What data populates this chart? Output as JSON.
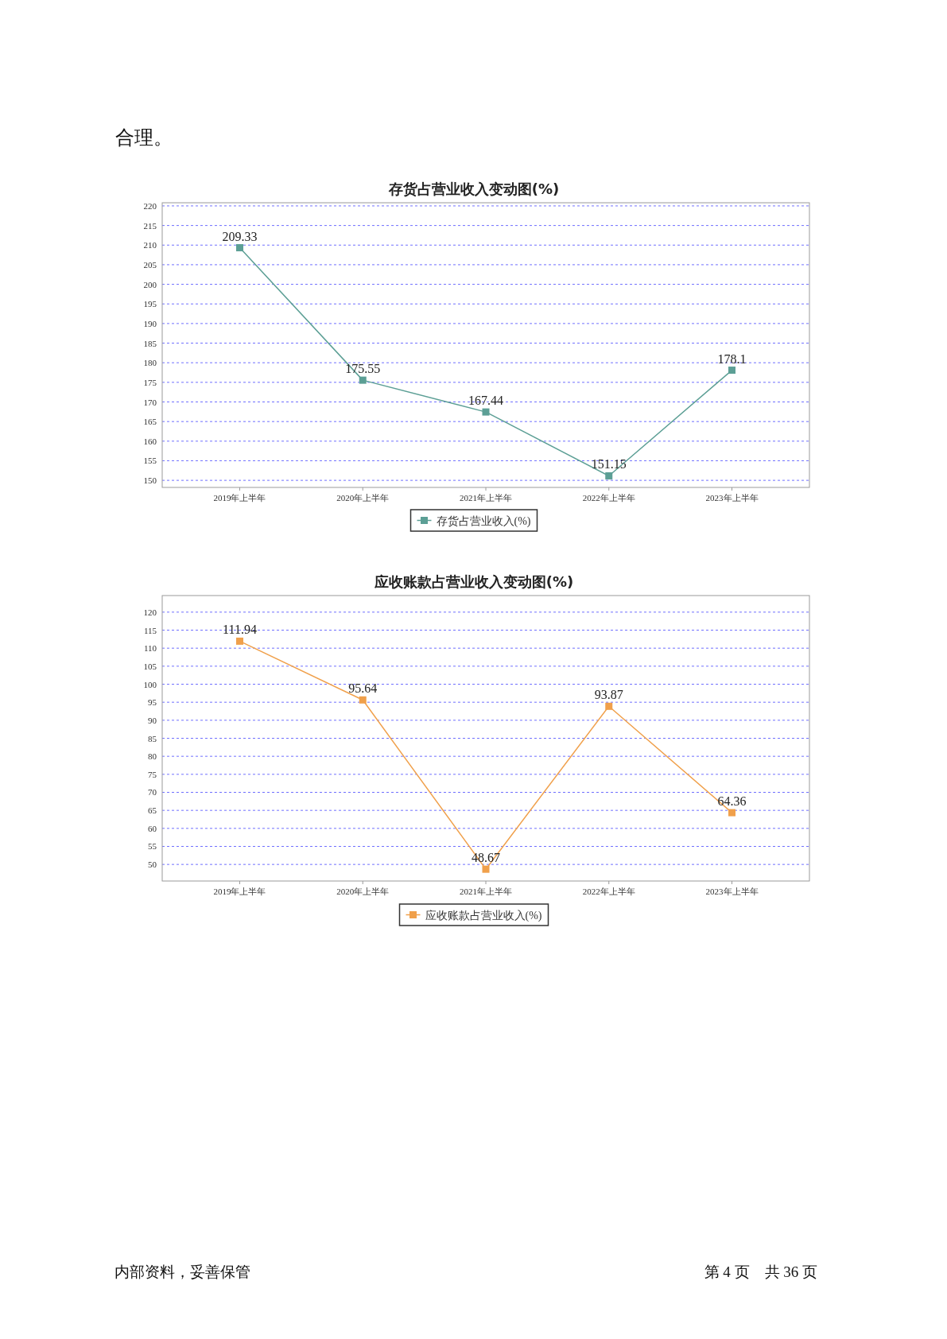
{
  "chart_data": [
    {
      "type": "line",
      "title": "存货占营业收入变动图(%)",
      "categories": [
        "2019年上半年",
        "2020年上半年",
        "2021年上半年",
        "2022年上半年",
        "2023年上半年"
      ],
      "series": [
        {
          "name": "存货占营业收入(%)",
          "color": "#5c9f95",
          "values": [
            209.33,
            175.55,
            167.44,
            151.15,
            178.1
          ]
        }
      ],
      "ylim": [
        148.2,
        220.8
      ],
      "yticks": [
        150,
        155,
        160,
        165,
        170,
        175,
        180,
        185,
        190,
        195,
        200,
        205,
        210,
        215,
        220
      ],
      "grid": "y",
      "legend": "bottom",
      "marker": "square",
      "line_style": "solid",
      "data_labels": true,
      "annotations": [
        "合理。"
      ]
    },
    {
      "type": "line",
      "title": "应收账款占营业收入变动图(%)",
      "categories": [
        "2019年上半年",
        "2020年上半年",
        "2021年上半年",
        "2022年上半年",
        "2023年上半年"
      ],
      "series": [
        {
          "name": "应收账款占营业收入(%)",
          "color": "#f0a04b",
          "values": [
            111.94,
            95.64,
            48.67,
            93.87,
            64.36
          ]
        }
      ],
      "ylim": [
        45.4,
        124.6
      ],
      "yticks": [
        50,
        55,
        60,
        65,
        70,
        75,
        80,
        85,
        90,
        95,
        100,
        105,
        110,
        115,
        120
      ],
      "grid": "y",
      "legend": "bottom",
      "marker": "square",
      "line_style": "solid",
      "data_labels": true,
      "annotations": [
        "内部资料，妥善保管",
        "第 4 页　共 36 页"
      ]
    }
  ]
}
